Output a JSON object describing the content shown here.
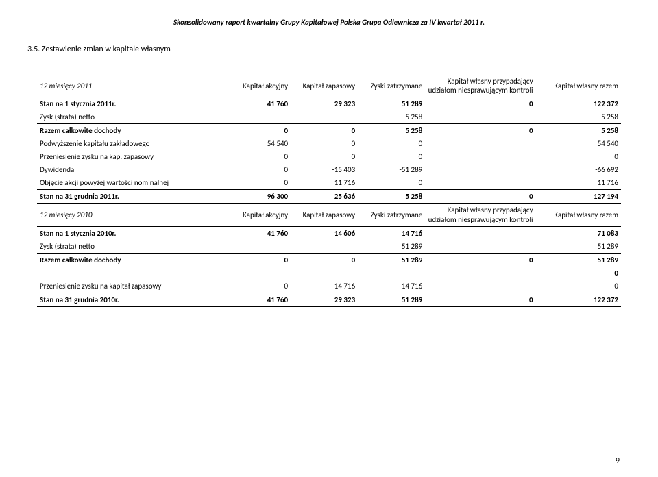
{
  "header": "Skonsolidowany raport kwartalny Grupy Kapitałowej Polska Grupa Odlewnicza za IV kwartał 2011 r.",
  "section_title": "3.5. Zestawienie zmian w kapitale własnym",
  "page_number": "9",
  "columns": {
    "c1": "Kapitał akcyjny",
    "c2": "Kapitał zapasowy",
    "c3": "Zyski zatrzymane",
    "c4": "Kapitał własny przypadający udziałom niesprawującym kontroli",
    "c5": "Kapitał własny razem"
  },
  "periods": {
    "p1": "12 miesięcy 2011",
    "p2": "12 miesięcy 2010"
  },
  "t1": {
    "r0": {
      "label": "Stan na 1 stycznia 2011r.",
      "v": [
        "41 760",
        "29 323",
        "51 289",
        "0",
        "122 372"
      ]
    },
    "r1": {
      "label": "Zysk (strata) netto",
      "v": [
        "",
        "",
        "5 258",
        "",
        "5 258"
      ]
    },
    "r2": {
      "label": "Razem całkowite dochody",
      "v": [
        "0",
        "0",
        "5 258",
        "0",
        "5 258"
      ]
    },
    "r3": {
      "label": "Podwyższenie kapitału zakładowego",
      "v": [
        "54 540",
        "0",
        "0",
        "",
        "54 540"
      ]
    },
    "r4": {
      "label": "Przeniesienie zysku na kap. zapasowy",
      "v": [
        "0",
        "0",
        "0",
        "",
        "0"
      ]
    },
    "r5": {
      "label": "Dywidenda",
      "v": [
        "0",
        "-15 403",
        "-51 289",
        "",
        "-66 692"
      ]
    },
    "r6": {
      "label": "Objęcie akcji powyżej wartości nominalnej",
      "v": [
        "0",
        "11 716",
        "0",
        "",
        "11 716"
      ]
    },
    "r7": {
      "label": "Stan na 31 grudnia 2011r.",
      "v": [
        "96 300",
        "25 636",
        "5 258",
        "0",
        "127 194"
      ]
    }
  },
  "t2": {
    "r0": {
      "label": "Stan na 1 stycznia 2010r.",
      "v": [
        "41 760",
        "14 606",
        "14 716",
        "",
        "71 083"
      ]
    },
    "r1": {
      "label": "Zysk (strata) netto",
      "v": [
        "",
        "",
        "51 289",
        "",
        "51 289"
      ]
    },
    "r2": {
      "label": "Razem całkowite dochody",
      "v": [
        "0",
        "0",
        "51 289",
        "0",
        "51 289"
      ]
    },
    "r3": {
      "label": "",
      "v": [
        "",
        "",
        "",
        "",
        "0"
      ]
    },
    "r4": {
      "label": "Przeniesienie zysku na kapitał zapasowy",
      "v": [
        "0",
        "14 716",
        "-14 716",
        "",
        "0"
      ]
    },
    "r5": {
      "label": "Stan na 31 grudnia 2010r.",
      "v": [
        "41 760",
        "29 323",
        "51 289",
        "0",
        "122 372"
      ]
    }
  }
}
